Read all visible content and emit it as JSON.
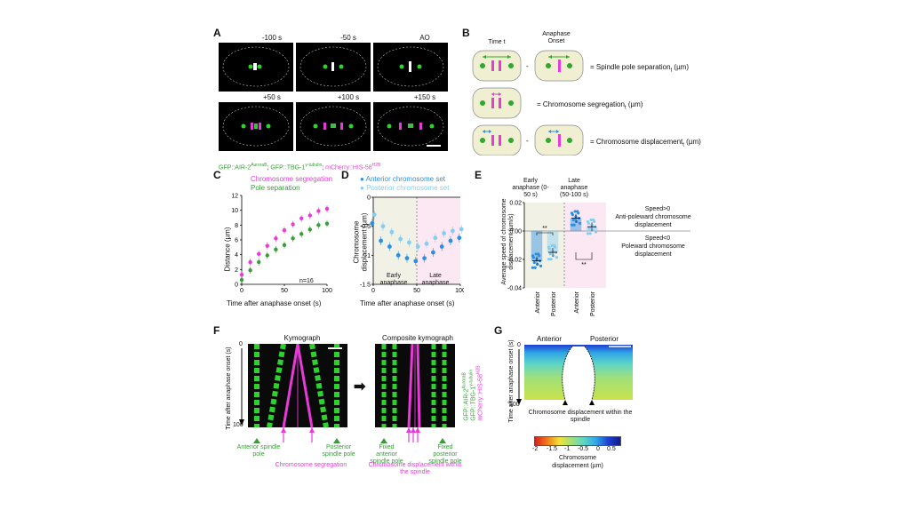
{
  "panels": {
    "A": {
      "label": "A",
      "timepoints": [
        "-100 s",
        "-50 s",
        "AO",
        "+50 s",
        "+100 s",
        "+150 s"
      ],
      "legend": {
        "gfp1": "GFP::AIR-2",
        "gfp1_sup": "AuroraB",
        "sep1": "; ",
        "gfp2": "GFP::TBG-1",
        "gfp2_sup": "γ-tubulin",
        "sep2": "; ",
        "mch": "mCherry::HIS-58",
        "mch_sup": "H2B"
      }
    },
    "B": {
      "label": "B",
      "time_t": "Time t",
      "anaphase_onset": "Anaphase Onset",
      "eq1": "= Spindle pole separation",
      "eq2": "= Chromosome segregation",
      "eq3": "= Chromosome displacement",
      "sub": "t",
      "unit": " (µm)",
      "minus": "-"
    },
    "C": {
      "label": "C",
      "legend_seg": "Chromosome segregation",
      "legend_pole": "Pole separation",
      "n": "n=16",
      "xlabel": "Time after anaphase onset (s)",
      "ylabel": "Distance (µm)"
    },
    "D": {
      "label": "D",
      "legend_ant": "Anterior chromosome set",
      "legend_post": "Posterior chromosome set",
      "ylabel1": "Chromosome",
      "ylabel2": "displacement (µm)",
      "xlabel": "Time after anaphase onset (s)",
      "early": "Early anaphase",
      "late": "Late anaphase"
    },
    "E": {
      "label": "E",
      "early_title": "Early anaphase (0-50 s)",
      "late_title": "Late anaphase (50-100 s)",
      "ylabel1": "Average speed of chromosome",
      "ylabel2": "displacement (µm/s)",
      "cats": [
        "Anterior",
        "Posterior",
        "Anterior",
        "Posterior"
      ],
      "speed_pos": "Speed>0",
      "anti": "Anti-poleward chromosome",
      "displacement": "displacement",
      "speed_neg": "Speed<0",
      "pole": "Poleward chromosome",
      "sig": "**"
    },
    "F": {
      "label": "F",
      "kymo_title": "Kymograph",
      "composite_title": "Composite kymograph",
      "ylabel": "Time after anaphase onset (s)",
      "t0": "0",
      "t100": "100",
      "ant_pole": "Anterior spindle pole",
      "post_pole": "Posterior spindle pole",
      "chrom_seg": "Chromosome segregation",
      "fixed_ant": "Fixed anterior spindle pole",
      "fixed_post": "Fixed posterior spindle pole",
      "chrom_disp": "Chromosome displacement within the spindle",
      "side1": "GFP::AIR-2",
      "side1_sup": "AuroraB",
      "side2": "GFP::TBG-1",
      "side2_sup": "γ-tubulin",
      "side3": "mCherry::HIS-58",
      "side3_sup": "H2B"
    },
    "G": {
      "label": "G",
      "anterior": "Anterior",
      "posterior": "Posterior",
      "ylabel": "Time after anaphase onset (s)",
      "t0": "0",
      "t100": "100",
      "annot": "Chromosome displacement within the spindle",
      "cbar_ticks": [
        "-2",
        "-1.5",
        "-1",
        "-0.5",
        "0",
        "0.5"
      ],
      "cbar_label1": "Chromosome",
      "cbar_label2": "displacement (µm)"
    }
  },
  "chart_data": [
    {
      "panel": "C",
      "type": "scatter",
      "x": [
        0,
        10,
        20,
        30,
        40,
        50,
        60,
        70,
        80,
        90,
        100
      ],
      "series": [
        {
          "name": "Chromosome segregation",
          "color": "#e83ad8",
          "values": [
            1.3,
            3.0,
            4.1,
            5.2,
            6.2,
            7.3,
            8.1,
            8.9,
            9.3,
            9.9,
            10.2
          ]
        },
        {
          "name": "Pole separation",
          "color": "#3a9c3a",
          "values": [
            0.6,
            1.9,
            3.0,
            3.9,
            4.7,
            5.3,
            6.2,
            6.8,
            7.4,
            8.0,
            8.2
          ]
        }
      ],
      "xlim": [
        0,
        100
      ],
      "ylim": [
        0,
        12
      ],
      "xticks": [
        0,
        50,
        100
      ],
      "yticks": [
        0,
        2,
        4,
        6,
        8,
        10,
        12
      ]
    },
    {
      "panel": "D",
      "type": "scatter",
      "x": [
        0,
        10,
        20,
        30,
        40,
        50,
        60,
        70,
        80,
        90,
        100
      ],
      "series": [
        {
          "name": "Anterior chromosome set",
          "color": "#2e8fe0",
          "values": [
            -0.45,
            -0.75,
            -0.85,
            -1.0,
            -1.05,
            -1.1,
            -1.05,
            -0.95,
            -0.85,
            -0.75,
            -0.7
          ]
        },
        {
          "name": "Posterior chromosome set",
          "color": "#85cdf2",
          "values": [
            -0.3,
            -0.5,
            -0.6,
            -0.72,
            -0.78,
            -0.85,
            -0.8,
            -0.7,
            -0.62,
            -0.58,
            -0.55
          ]
        }
      ],
      "xlim": [
        0,
        100
      ],
      "ylim": [
        -1.5,
        0
      ],
      "xticks": [
        0,
        50,
        100
      ],
      "yticks": [
        0,
        -0.5,
        -1.0,
        -1.5
      ]
    },
    {
      "panel": "E",
      "type": "bar",
      "categories": [
        "Anterior",
        "Posterior",
        "Anterior",
        "Posterior"
      ],
      "values": [
        -0.021,
        -0.015,
        0.009,
        0.003
      ],
      "ylim": [
        -0.04,
        0.02
      ],
      "yticks": [
        0.02,
        0.0,
        -0.02,
        -0.04
      ]
    }
  ]
}
